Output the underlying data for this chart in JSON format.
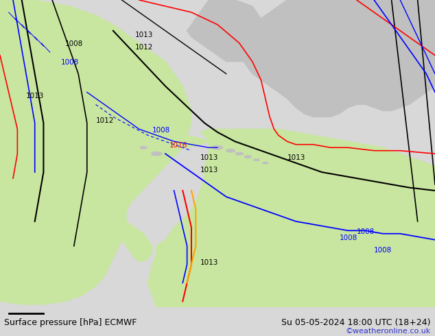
{
  "title_left": "Surface pressure [hPa] ECMWF",
  "title_right": "Su 05-05-2024 18:00 UTC (18+24)",
  "copyright": "©weatheronline.co.uk",
  "bg_color": "#d8d8d8",
  "land_color": "#c8e6a0",
  "gray_land_color": "#c0c0c0",
  "sea_color": "#e0e0e0",
  "figsize": [
    6.34,
    4.9
  ],
  "dpi": 100,
  "copyright_color": "#3333cc"
}
